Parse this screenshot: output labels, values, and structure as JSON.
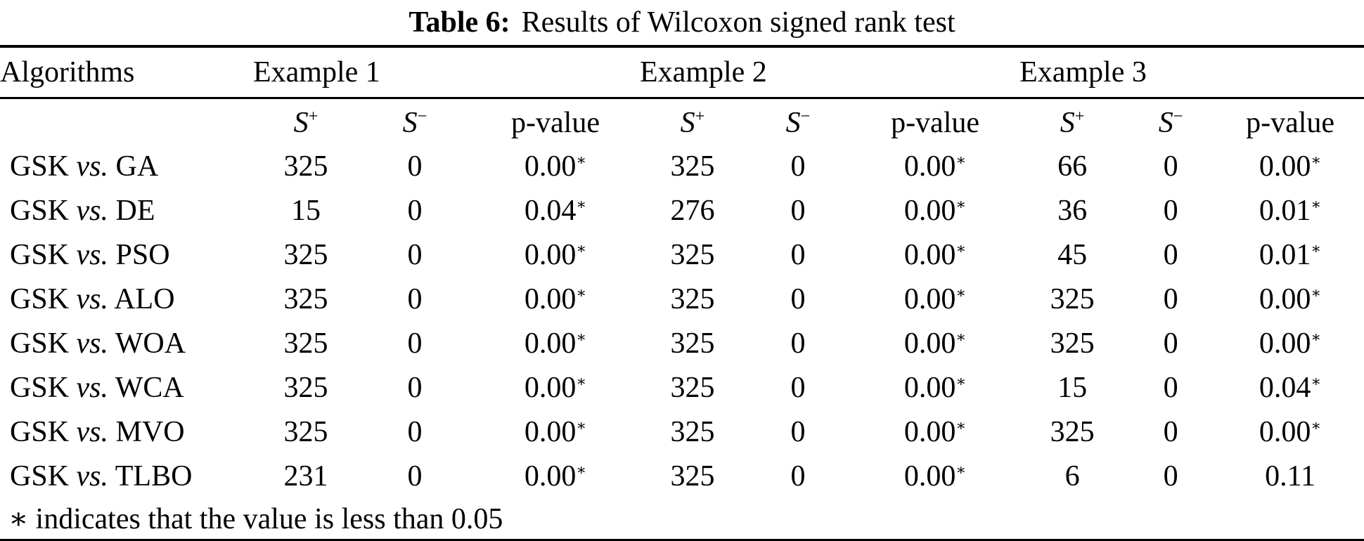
{
  "caption": {
    "label": "Table 6:",
    "text": "Results of Wilcoxon signed rank test"
  },
  "table": {
    "algorithms_header": "Algorithms",
    "group_headers": [
      "Example 1",
      "Example 2",
      "Example 3"
    ],
    "subheader": {
      "s_base": "S",
      "plus": "+",
      "minus": "−",
      "p_value": "p-value"
    },
    "vs_label": "vs.",
    "star_symbol": "∗",
    "rows": [
      {
        "baseline": "GSK",
        "competitor": "GA",
        "cells": [
          [
            "325",
            "0",
            {
              "v": "0.00",
              "star": true
            }
          ],
          [
            "325",
            "0",
            {
              "v": "0.00",
              "star": true
            }
          ],
          [
            "66",
            "0",
            {
              "v": "0.00",
              "star": true
            }
          ]
        ]
      },
      {
        "baseline": "GSK",
        "competitor": "DE",
        "cells": [
          [
            "15",
            "0",
            {
              "v": "0.04",
              "star": true
            }
          ],
          [
            "276",
            "0",
            {
              "v": "0.00",
              "star": true
            }
          ],
          [
            "36",
            "0",
            {
              "v": "0.01",
              "star": true
            }
          ]
        ]
      },
      {
        "baseline": "GSK",
        "competitor": "PSO",
        "cells": [
          [
            "325",
            "0",
            {
              "v": "0.00",
              "star": true
            }
          ],
          [
            "325",
            "0",
            {
              "v": "0.00",
              "star": true
            }
          ],
          [
            "45",
            "0",
            {
              "v": "0.01",
              "star": true
            }
          ]
        ]
      },
      {
        "baseline": "GSK",
        "competitor": "ALO",
        "cells": [
          [
            "325",
            "0",
            {
              "v": "0.00",
              "star": true
            }
          ],
          [
            "325",
            "0",
            {
              "v": "0.00",
              "star": true
            }
          ],
          [
            "325",
            "0",
            {
              "v": "0.00",
              "star": true
            }
          ]
        ]
      },
      {
        "baseline": "GSK",
        "competitor": "WOA",
        "cells": [
          [
            "325",
            "0",
            {
              "v": "0.00",
              "star": true
            }
          ],
          [
            "325",
            "0",
            {
              "v": "0.00",
              "star": true
            }
          ],
          [
            "325",
            "0",
            {
              "v": "0.00",
              "star": true
            }
          ]
        ]
      },
      {
        "baseline": "GSK",
        "competitor": "WCA",
        "cells": [
          [
            "325",
            "0",
            {
              "v": "0.00",
              "star": true
            }
          ],
          [
            "325",
            "0",
            {
              "v": "0.00",
              "star": true
            }
          ],
          [
            "15",
            "0",
            {
              "v": "0.04",
              "star": true
            }
          ]
        ]
      },
      {
        "baseline": "GSK",
        "competitor": "MVO",
        "cells": [
          [
            "325",
            "0",
            {
              "v": "0.00",
              "star": true
            }
          ],
          [
            "325",
            "0",
            {
              "v": "0.00",
              "star": true
            }
          ],
          [
            "325",
            "0",
            {
              "v": "0.00",
              "star": true
            }
          ]
        ]
      },
      {
        "baseline": "GSK",
        "competitor": "TLBO",
        "cells": [
          [
            "231",
            "0",
            {
              "v": "0.00",
              "star": true
            }
          ],
          [
            "325",
            "0",
            {
              "v": "0.00",
              "star": true
            }
          ],
          [
            "6",
            "0",
            {
              "v": "0.11",
              "star": false
            }
          ]
        ]
      }
    ],
    "footnote": {
      "symbol": "∗",
      "text": "indicates that the value is less than 0.05"
    }
  },
  "colors": {
    "text": "#000000",
    "background": "#ffffff",
    "rule": "#000000"
  }
}
